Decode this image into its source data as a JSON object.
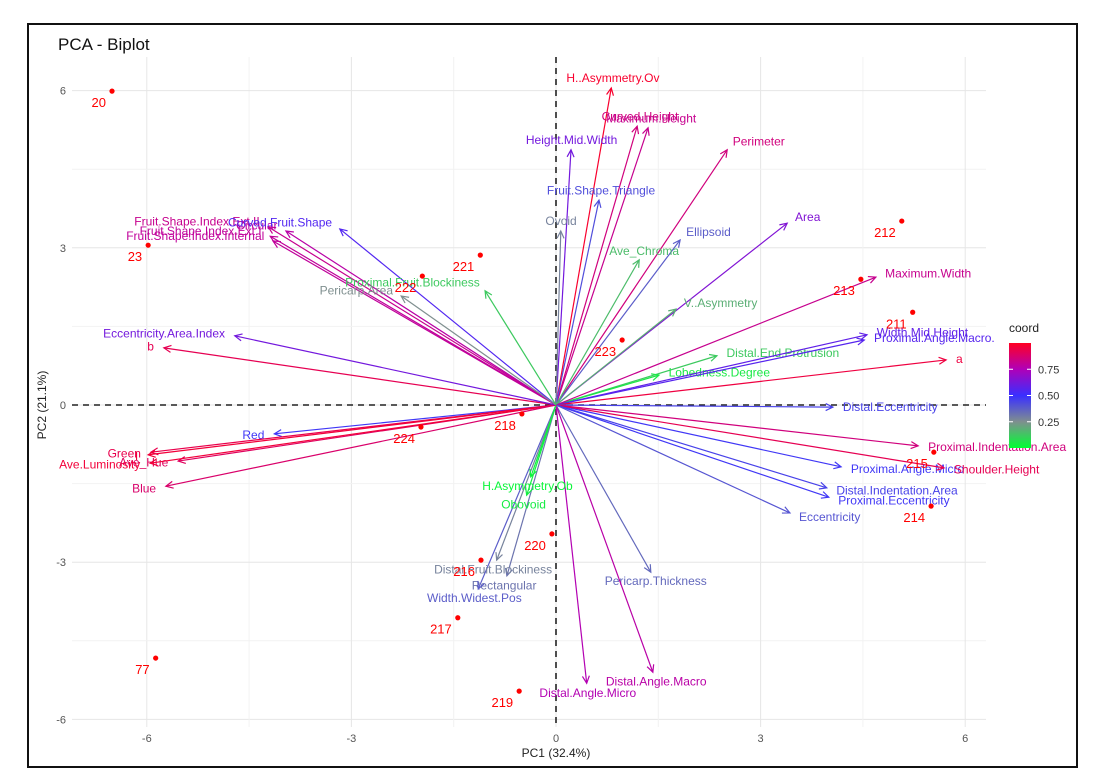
{
  "chart_data": {
    "type": "scatter",
    "subtype": "pca-biplot",
    "title": "PCA - Biplot",
    "xlabel": "PC1 (32.4%)",
    "ylabel": "PC2 (21.1%)",
    "xlim": [
      -7.1,
      6.3
    ],
    "ylim": [
      -6.1,
      6.6
    ],
    "xticks": [
      -6,
      -3,
      0,
      3,
      6
    ],
    "yticks": [
      -6,
      -3,
      0,
      3,
      6
    ],
    "xtick_labels": [
      "-6",
      "-3",
      "0",
      "3",
      "6"
    ],
    "ytick_labels": [
      "-6",
      "-3",
      "0",
      "3",
      "6"
    ],
    "grid": true,
    "reference_lines": {
      "x": 0,
      "y": 0,
      "style": "dashed"
    },
    "legend": {
      "title": "coord",
      "position": "right",
      "type": "gradient",
      "ticks": [
        0.25,
        0.5,
        0.75
      ],
      "tick_labels": [
        "0.25",
        "0.50",
        "0.75"
      ],
      "range": [
        0.0,
        1.0
      ],
      "colors": {
        "low": "#00ff33",
        "mid_low": "#7f7f9f",
        "mid": "#3333ff",
        "mid_high": "#b300b3",
        "high": "#ff0022"
      }
    },
    "points": {
      "color": "#ff0000",
      "items": [
        {
          "label": "20",
          "x": -6.51,
          "y": 5.99
        },
        {
          "label": "23",
          "x": -5.98,
          "y": 3.05
        },
        {
          "label": "77",
          "x": -5.87,
          "y": -4.83
        },
        {
          "label": "212",
          "x": 5.07,
          "y": 3.51
        },
        {
          "label": "213",
          "x": 4.47,
          "y": 2.4
        },
        {
          "label": "211",
          "x": 5.23,
          "y": 1.77
        },
        {
          "label": "215",
          "x": 5.54,
          "y": -0.9
        },
        {
          "label": "214",
          "x": 5.5,
          "y": -1.93
        },
        {
          "label": "221",
          "x": -1.11,
          "y": 2.86
        },
        {
          "label": "222",
          "x": -1.96,
          "y": 2.46
        },
        {
          "label": "223",
          "x": 0.97,
          "y": 1.24
        },
        {
          "label": "218",
          "x": -0.5,
          "y": -0.17
        },
        {
          "label": "224",
          "x": -1.98,
          "y": -0.42
        },
        {
          "label": "220",
          "x": -0.06,
          "y": -2.46
        },
        {
          "label": "216",
          "x": -1.1,
          "y": -2.96
        },
        {
          "label": "217",
          "x": -1.44,
          "y": -4.06
        },
        {
          "label": "219",
          "x": -0.54,
          "y": -5.46
        }
      ]
    },
    "variables": [
      {
        "name": "H..Asymmetry.Ov",
        "x": 0.81,
        "y": 6.05,
        "coord": 0.98
      },
      {
        "name": "Curved.Height",
        "x": 1.19,
        "y": 5.32,
        "coord": 0.85
      },
      {
        "name": "Maximum.Height",
        "x": 1.35,
        "y": 5.29,
        "coord": 0.82
      },
      {
        "name": "Perimeter",
        "x": 2.51,
        "y": 4.87,
        "coord": 0.85
      },
      {
        "name": "Height.Mid.Width",
        "x": 0.22,
        "y": 4.87,
        "coord": 0.62
      },
      {
        "name": "Fruit.Shape.Triangle",
        "x": 0.63,
        "y": 3.91,
        "coord": 0.42
      },
      {
        "name": "Ovoid",
        "x": 0.07,
        "y": 3.32,
        "coord": 0.28
      },
      {
        "name": "Ellipsoid",
        "x": 1.82,
        "y": 3.15,
        "coord": 0.38
      },
      {
        "name": "Area",
        "x": 3.39,
        "y": 3.47,
        "coord": 0.65
      },
      {
        "name": "Ave_Chroma",
        "x": 1.22,
        "y": 2.77,
        "coord": 0.15
      },
      {
        "name": "V..Asymmetry",
        "x": 1.76,
        "y": 1.83,
        "coord": 0.18
      },
      {
        "name": "Distal.End.Protrusion",
        "x": 2.36,
        "y": 0.94,
        "coord": 0.12
      },
      {
        "name": "Lobedness.Degree",
        "x": 1.51,
        "y": 0.57,
        "coord": 0.05
      },
      {
        "name": "Maximum.Width",
        "x": 4.69,
        "y": 2.44,
        "coord": 0.82
      },
      {
        "name": "Width.Mid.Height",
        "x": 4.56,
        "y": 1.34,
        "coord": 0.58
      },
      {
        "name": "Proximal.Angle.Macro.",
        "x": 4.52,
        "y": 1.24,
        "coord": 0.56
      },
      {
        "name": "a",
        "x": 5.72,
        "y": 0.86,
        "coord": 0.95
      },
      {
        "name": "Distal.Eccentricity",
        "x": 4.06,
        "y": -0.04,
        "coord": 0.45
      },
      {
        "name": "Proximal.Indentation.Area",
        "x": 5.31,
        "y": -0.78,
        "coord": 0.85
      },
      {
        "name": "Proximal.Angle.Micro",
        "x": 4.18,
        "y": -1.18,
        "coord": 0.48
      },
      {
        "name": "Shoulder.Height",
        "x": 5.69,
        "y": -1.2,
        "coord": 0.92
      },
      {
        "name": "Distal.Indentation.Area",
        "x": 3.97,
        "y": -1.58,
        "coord": 0.45
      },
      {
        "name": "Proximal.Eccentricity",
        "x": 4.0,
        "y": -1.76,
        "coord": 0.48
      },
      {
        "name": "Eccentricity",
        "x": 3.43,
        "y": -2.06,
        "coord": 0.4
      },
      {
        "name": "Pericarp.Thickness",
        "x": 1.39,
        "y": -3.19,
        "coord": 0.35
      },
      {
        "name": "Distal.Angle.Macro",
        "x": 1.42,
        "y": -5.1,
        "coord": 0.78
      },
      {
        "name": "Distal.Angle.Micro",
        "x": 0.45,
        "y": -5.31,
        "coord": 0.76
      },
      {
        "name": "Rectangular",
        "x": -0.72,
        "y": -3.26,
        "coord": 0.32
      },
      {
        "name": "Width.Widest.Pos",
        "x": -1.14,
        "y": -3.51,
        "coord": 0.38
      },
      {
        "name": "Distal.Fruit.Blockiness",
        "x": -0.87,
        "y": -2.96,
        "coord": 0.28
      },
      {
        "name": "H.Asymmetry.Ob",
        "x": -0.37,
        "y": -1.37,
        "coord": 0.02
      },
      {
        "name": "Obovoid",
        "x": -0.43,
        "y": -1.72,
        "coord": 0.04
      },
      {
        "name": "Red",
        "x": -4.13,
        "y": -0.55,
        "coord": 0.48
      },
      {
        "name": "Green",
        "x": -5.94,
        "y": -0.9,
        "coord": 0.93
      },
      {
        "name": "I",
        "x": -5.98,
        "y": -0.95,
        "coord": 0.96
      },
      {
        "name": "Ave_Hue",
        "x": -5.54,
        "y": -1.07,
        "coord": 0.9
      },
      {
        "name": "Ave.Luminosity",
        "x": -5.95,
        "y": -1.11,
        "coord": 0.96
      },
      {
        "name": "Blue",
        "x": -5.72,
        "y": -1.55,
        "coord": 0.88
      },
      {
        "name": "b",
        "x": -5.75,
        "y": 1.09,
        "coord": 0.92
      },
      {
        "name": "Eccentricity.Area.Index",
        "x": -4.71,
        "y": 1.32,
        "coord": 0.62
      },
      {
        "name": "Fruit.Shape.Index.Ext.II",
        "x": -4.22,
        "y": 3.4,
        "coord": 0.82
      },
      {
        "name": "Circular",
        "x": -3.96,
        "y": 3.32,
        "coord": 0.78
      },
      {
        "name": "Fruit.Shape.Index.Internal",
        "x": -4.15,
        "y": 3.13,
        "coord": 0.8
      },
      {
        "name": "Fruit.Shape.Index.Ext.I",
        "x": -4.19,
        "y": 3.22,
        "coord": 0.8
      },
      {
        "name": "Curved.Fruit.Shape",
        "x": -3.17,
        "y": 3.36,
        "coord": 0.55
      },
      {
        "name": "Pericarp.Area",
        "x": -2.27,
        "y": 2.08,
        "coord": 0.25
      },
      {
        "name": "Proximal.Fruit.Blockiness",
        "x": -1.04,
        "y": 2.18,
        "coord": 0.12
      }
    ],
    "label_offsets_note": "labels placed near arrow tips"
  }
}
